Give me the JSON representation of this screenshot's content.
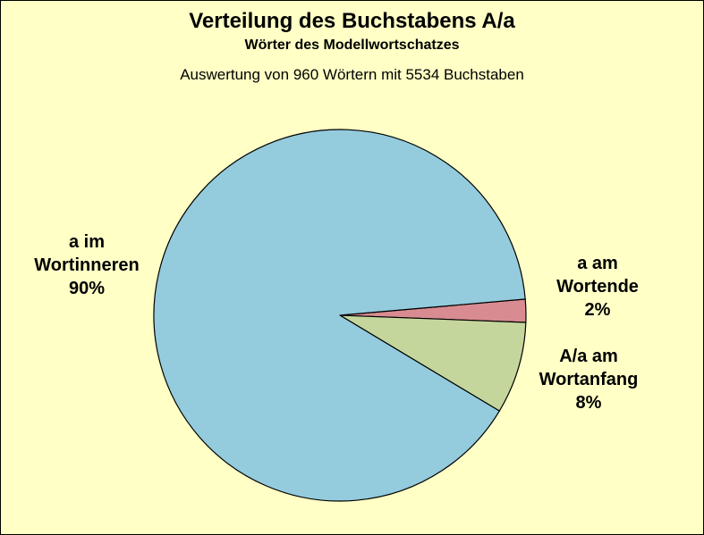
{
  "chart_data": {
    "type": "pie",
    "title": "Verteilung des Buchstabens A/a",
    "subtitle": "Wörter des Modellwortschatzes",
    "note": "Auswertung von 960 Wörtern mit 5534 Buchstaben",
    "slices": [
      {
        "name_lines": [
          "a am",
          "Wortende"
        ],
        "percent_label": "2%",
        "value": 2,
        "color": "#d88c91"
      },
      {
        "name_lines": [
          "A/a am",
          "Wortanfang"
        ],
        "percent_label": "8%",
        "value": 8,
        "color": "#c5d69d"
      },
      {
        "name_lines": [
          "a im",
          "Wortinneren"
        ],
        "percent_label": "90%",
        "value": 90,
        "color": "#94cbdd"
      }
    ],
    "background_color": "#ffffc6",
    "outline_color": "#000000"
  }
}
